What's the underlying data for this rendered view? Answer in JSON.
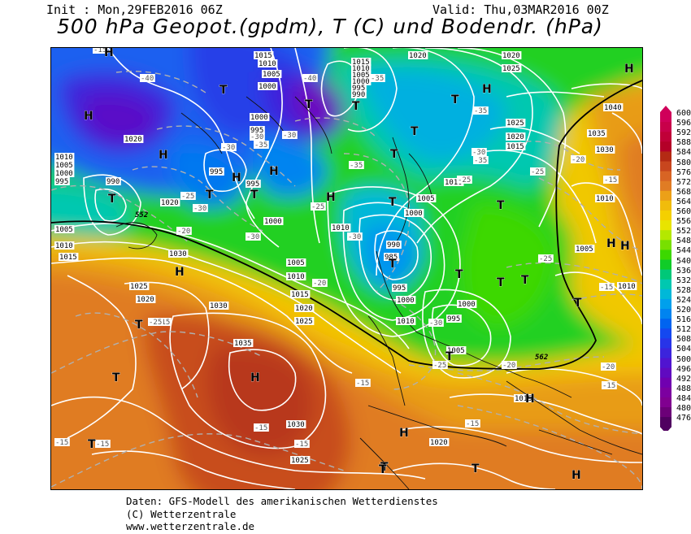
{
  "header": {
    "init": "Init : Mon,29FEB2016 06Z",
    "valid": "Valid: Thu,03MAR2016 00Z",
    "title": "500 hPa Geopot.(gpdm), T (C) und Bodendr. (hPa)"
  },
  "legend": {
    "values": [
      "600",
      "596",
      "592",
      "588",
      "584",
      "580",
      "576",
      "572",
      "568",
      "564",
      "560",
      "556",
      "552",
      "548",
      "544",
      "540",
      "536",
      "532",
      "528",
      "524",
      "520",
      "516",
      "512",
      "508",
      "504",
      "500",
      "496",
      "492",
      "488",
      "484",
      "480",
      "476"
    ],
    "colors": [
      "#d0005a",
      "#c8004a",
      "#c00038",
      "#b40028",
      "#b42a14",
      "#c8461e",
      "#d86424",
      "#e07c24",
      "#eca018",
      "#f0bc0c",
      "#f4d000",
      "#e8e400",
      "#b4e800",
      "#78e000",
      "#3cd800",
      "#10cc28",
      "#00c878",
      "#00c8b0",
      "#00b8d8",
      "#00a0ec",
      "#0084f0",
      "#0064f0",
      "#1448f0",
      "#2834e8",
      "#3c24dc",
      "#5014d0",
      "#600ac0",
      "#7000b0",
      "#7c00a0",
      "#800090",
      "#6c0078",
      "#500060"
    ]
  },
  "map": {
    "labels": [
      {
        "type": "isobar",
        "text": "1020"
      },
      {
        "type": "isobar",
        "text": "1025"
      },
      {
        "type": "isobar",
        "text": "1015"
      },
      {
        "type": "isobar",
        "text": "1010"
      },
      {
        "type": "isobar",
        "text": "1005"
      },
      {
        "type": "isobar",
        "text": "1000"
      },
      {
        "type": "isobar",
        "text": "995"
      },
      {
        "type": "isobar",
        "text": "990"
      },
      {
        "type": "isobar",
        "text": "985"
      },
      {
        "type": "isobar",
        "text": "1030"
      },
      {
        "type": "isobar",
        "text": "1035"
      },
      {
        "type": "isobar",
        "text": "1040"
      },
      {
        "type": "isotherm",
        "text": "-15"
      },
      {
        "type": "isotherm",
        "text": "-20"
      },
      {
        "type": "isotherm",
        "text": "-25"
      },
      {
        "type": "isotherm",
        "text": "-30"
      },
      {
        "type": "isotherm",
        "text": "-35"
      },
      {
        "type": "isotherm",
        "text": "-40"
      },
      {
        "type": "height",
        "text": "552"
      },
      {
        "type": "height",
        "text": "562"
      }
    ],
    "symbols": {
      "high": "H",
      "low": "T"
    }
  },
  "footer": {
    "line1": "Daten: GFS-Modell des amerikanischen Wetterdienstes",
    "line2": "(C) Wetterzentrale",
    "line3": "www.wetterzentrale.de"
  }
}
